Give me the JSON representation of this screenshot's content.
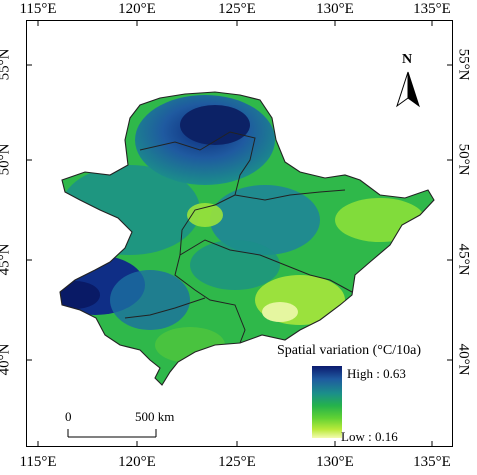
{
  "map": {
    "lon_labels": [
      "115°E",
      "120°E",
      "125°E",
      "130°E",
      "135°E"
    ],
    "lat_labels": [
      "55°N",
      "50°N",
      "45°N",
      "40°N"
    ],
    "north_arrow": "N",
    "legend": {
      "title": "Spatial variation (°C/10a)",
      "high": "High : 0.63",
      "low": "Low : 0.16",
      "colors": [
        "#0b1a6e",
        "#1f5aa0",
        "#1b8f8a",
        "#25b24c",
        "#5fd134",
        "#b9ea3a",
        "#f3fbb0"
      ]
    },
    "scale_bar": {
      "start": "0",
      "end": "500 km"
    }
  }
}
